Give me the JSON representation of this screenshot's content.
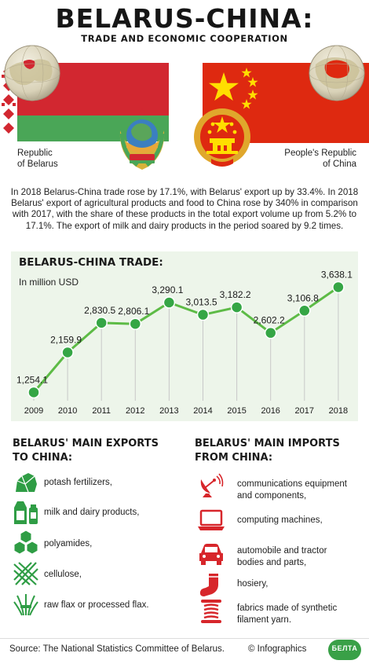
{
  "header": {
    "title": "BELARUS-CHINA:",
    "subtitle": "TRADE AND ECONOMIC COOPERATION"
  },
  "countries": {
    "left_line1": "Republic",
    "left_line2": "of Belarus",
    "right_line1": "People's Republic",
    "right_line2": "of China"
  },
  "colors": {
    "accent_green": "#5dbb46",
    "point_green": "#35a645",
    "export_green": "#2f9d45",
    "import_red": "#d7262b",
    "belarus_red": "#d22730",
    "belarus_green": "#4aa657",
    "china_red": "#de2910",
    "china_yellow": "#ffde00"
  },
  "intro": "In 2018 Belarus-China trade rose by 17.1%, with Belarus' export up by 33.4%. In 2018 Belarus' export of agricultural products and food to China rose by 340% in comparison with 2017, with the share of these products in the total export volume up from 5.2% to 17.1%. The export of milk and dairy products in the period soared by 9.2 times.",
  "chart_data": {
    "type": "line",
    "title": "BELARUS-CHINA TRADE:",
    "ylabel": "In million USD",
    "x": [
      "2009",
      "2010",
      "2011",
      "2012",
      "2013",
      "2014",
      "2015",
      "2016",
      "2017",
      "2018"
    ],
    "values": [
      1254.1,
      2159.9,
      2830.5,
      2806.1,
      3290.1,
      3013.5,
      3182.2,
      2602.2,
      3106.8,
      3638.1
    ],
    "labels": [
      "1,254.1",
      "2,159.9",
      "2,830.5",
      "2,806.1",
      "3,290.1",
      "3,013.5",
      "3,182.2",
      "2,602.2",
      "3,106.8",
      "3,638.1"
    ],
    "ylim": [
      1100,
      3700
    ],
    "grid": false,
    "legend": "none"
  },
  "exports": {
    "heading_line1": "BELARUS' MAIN EXPORTS",
    "heading_line2": "TO CHINA:",
    "items": [
      {
        "icon": "potash-icon",
        "text": "potash fertilizers,"
      },
      {
        "icon": "milk-icon",
        "text": "milk and dairy products,"
      },
      {
        "icon": "cubes-icon",
        "text": "polyamides,"
      },
      {
        "icon": "cellulose-mesh-icon",
        "text": "cellulose,"
      },
      {
        "icon": "flax-sheaf-icon",
        "text": "raw flax or processed flax."
      }
    ]
  },
  "imports": {
    "heading_line1": "BELARUS' MAIN IMPORTS",
    "heading_line2": "FROM CHINA:",
    "items": [
      {
        "icon": "satellite-dish-icon",
        "line1": "communications equipment",
        "line2": "and components,"
      },
      {
        "icon": "laptop-icon",
        "line1": "computing machines,",
        "line2": ""
      },
      {
        "icon": "car-icon",
        "line1": "automobile and tractor",
        "line2": "bodies and parts,"
      },
      {
        "icon": "sock-icon",
        "line1": "hosiery,",
        "line2": ""
      },
      {
        "icon": "yarn-spool-icon",
        "line1": "fabrics made of synthetic",
        "line2": "filament yarn."
      }
    ]
  },
  "footer": {
    "source": "Source: The National Statistics Committee of Belarus.",
    "copyright": "© Infographics",
    "logo_text": "БЕЛТА"
  }
}
